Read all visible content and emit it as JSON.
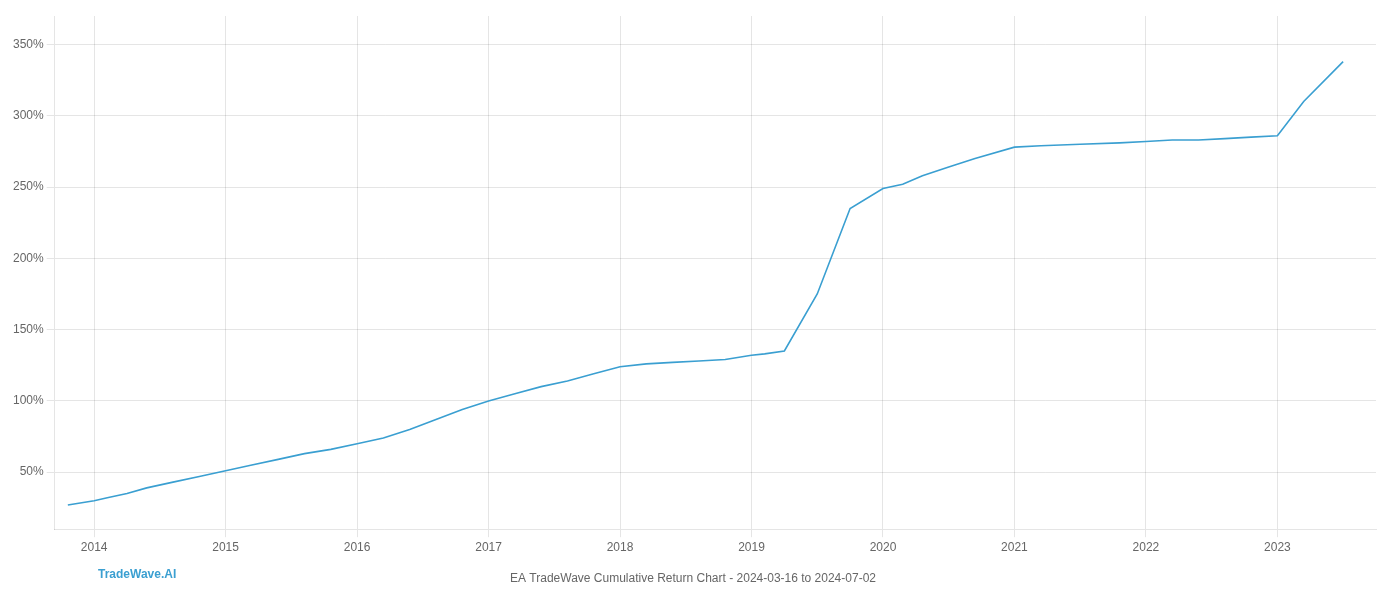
{
  "chart_data": {
    "type": "line",
    "title": "EA TradeWave Cumulative Return Chart - 2024-03-16 to 2024-07-02",
    "annotations": [
      "TradeWave.AI"
    ],
    "x": [
      2013.8,
      2014.0,
      2014.1,
      2014.25,
      2014.4,
      2014.6,
      2014.8,
      2015.0,
      2015.2,
      2015.4,
      2015.6,
      2015.8,
      2016.0,
      2016.2,
      2016.4,
      2016.6,
      2016.8,
      2017.0,
      2017.2,
      2017.4,
      2017.6,
      2017.8,
      2018.0,
      2018.2,
      2018.4,
      2018.6,
      2018.8,
      2019.0,
      2019.1,
      2019.25,
      2019.5,
      2019.75,
      2020.0,
      2020.15,
      2020.3,
      2020.5,
      2020.7,
      2021.0,
      2021.2,
      2021.5,
      2021.8,
      2022.0,
      2022.2,
      2022.4,
      2022.6,
      2022.8,
      2023.0,
      2023.2,
      2023.5
    ],
    "values": [
      27,
      30,
      32,
      35,
      39,
      43,
      47,
      51,
      55,
      59,
      63,
      66,
      70,
      74,
      80,
      87,
      94,
      100,
      105,
      110,
      114,
      119,
      124,
      126,
      127,
      128,
      129,
      132,
      133,
      135,
      175,
      235,
      249,
      252,
      258,
      264,
      270,
      278,
      279,
      280,
      281,
      282,
      283,
      283,
      284,
      285,
      286,
      310,
      338
    ],
    "color": "#3a9fd1",
    "xlim": [
      2013.7,
      2023.75
    ],
    "xticks": [
      2014,
      2015,
      2016,
      2017,
      2018,
      2019,
      2020,
      2021,
      2022,
      2023
    ],
    "ylim": [
      10,
      370
    ],
    "yticks": [
      {
        "value": 50,
        "label": "50%"
      },
      {
        "value": 100,
        "label": "100%"
      },
      {
        "value": 150,
        "label": "150%"
      },
      {
        "value": 200,
        "label": "200%"
      },
      {
        "value": 250,
        "label": "250%"
      },
      {
        "value": 300,
        "label": "300%"
      },
      {
        "value": 350,
        "label": "350%"
      }
    ],
    "grid": true
  }
}
